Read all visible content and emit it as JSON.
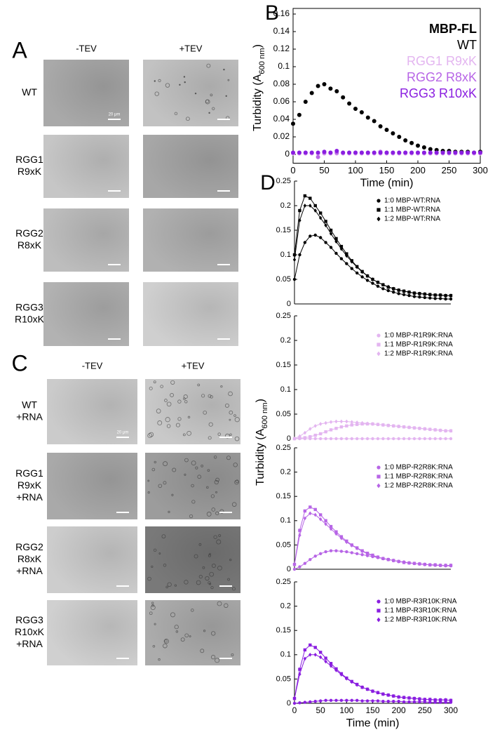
{
  "panel_a": {
    "label": "A",
    "columns": [
      "-TEV",
      "+TEV"
    ],
    "rows": [
      [
        "WT"
      ],
      [
        "RGG1",
        "R9xK"
      ],
      [
        "RGG2",
        "R8xK"
      ],
      [
        "RGG3",
        "R10xK"
      ]
    ],
    "scale_label": "20 μm"
  },
  "panel_c": {
    "label": "C",
    "columns": [
      "-TEV",
      "+TEV"
    ],
    "rows": [
      [
        "WT",
        "+RNA"
      ],
      [
        "RGG1",
        "R9xK",
        "+RNA"
      ],
      [
        "RGG2",
        "R8xK",
        "+RNA"
      ],
      [
        "RGG3",
        "R10xK",
        "+RNA"
      ]
    ],
    "scale_label": "20 μm"
  },
  "chart_data": [
    {
      "type": "scatter",
      "panel_label": "B",
      "x_label": "Time (min)",
      "y_label": [
        "Turbidity (A",
        "600 nm",
        ")"
      ],
      "legend_title": "MBP-FL",
      "legend": "upper right",
      "xlim": [
        0,
        300
      ],
      "xticks": [
        0,
        50,
        100,
        150,
        200,
        250,
        300
      ],
      "ylim": [
        -0.01,
        0.16
      ],
      "yticks": [
        0,
        0.02,
        0.04,
        0.06,
        0.08,
        0.1,
        0.12,
        0.14,
        0.16
      ],
      "x": [
        0,
        10,
        20,
        30,
        40,
        50,
        60,
        70,
        80,
        90,
        100,
        110,
        120,
        130,
        140,
        150,
        160,
        170,
        180,
        190,
        200,
        210,
        220,
        230,
        240,
        250,
        260,
        270,
        280,
        290,
        300
      ],
      "series": [
        {
          "name": "WT",
          "color": "#000000",
          "values": [
            0.035,
            0.045,
            0.06,
            0.07,
            0.078,
            0.08,
            0.075,
            0.072,
            0.065,
            0.058,
            0.052,
            0.048,
            0.042,
            0.038,
            0.032,
            0.028,
            0.024,
            0.02,
            0.016,
            0.013,
            0.01,
            0.008,
            0.006,
            0.005,
            0.004,
            0.004,
            0.003,
            0.003,
            0.003,
            0.002,
            0.003
          ]
        },
        {
          "name": "RGG1 R9xK",
          "color": "#e3b5f0",
          "values": [
            0.001,
            0.001,
            0.001,
            0.001,
            0.001,
            0.001,
            0.001,
            0.001,
            0.001,
            0.001,
            0.001,
            0.001,
            0.001,
            0.001,
            0.001,
            0.001,
            0.001,
            0.001,
            0.001,
            0.001,
            0.001,
            0.001,
            0.001,
            0.001,
            0.001,
            0.001,
            0.001,
            0.001,
            0.001,
            0.001,
            0.001
          ]
        },
        {
          "name": "RGG2 R8xK",
          "color": "#b765e6",
          "values": [
            0.002,
            0.002,
            0.002,
            0.002,
            -0.003,
            0.002,
            0.002,
            0.002,
            0.002,
            0.002,
            0.002,
            0.002,
            0.002,
            0.002,
            0.003,
            0.002,
            0.002,
            0.002,
            0.002,
            0.002,
            0.002,
            0.002,
            0.002,
            0.002,
            0.002,
            0.002,
            0.002,
            0.002,
            0.002,
            0.002,
            0.002
          ]
        },
        {
          "name": "RGG3 R10xK",
          "color": "#8a1ee0",
          "values": [
            0.002,
            0.002,
            0.002,
            0.002,
            0.002,
            0.003,
            0.002,
            0.004,
            0.002,
            0.002,
            0.002,
            0.002,
            0.002,
            0.002,
            0.002,
            0.002,
            0.002,
            0.002,
            0.002,
            0.002,
            0.002,
            0.002,
            0.002,
            0.002,
            0.002,
            0.002,
            0.002,
            0.002,
            0.002,
            0.002,
            0.002
          ]
        }
      ]
    },
    {
      "type": "line",
      "panel_label": "D",
      "y_label": [
        "Turbidity (A",
        "600 nm",
        ")"
      ],
      "legend": "upper right",
      "xlim": [
        0,
        300
      ],
      "ylim": [
        0,
        0.25
      ],
      "yticks": [
        0,
        0.05,
        0.1,
        0.15,
        0.2,
        0.25
      ],
      "x": [
        0,
        10,
        20,
        30,
        40,
        50,
        60,
        70,
        80,
        90,
        100,
        110,
        120,
        130,
        140,
        150,
        160,
        170,
        180,
        190,
        200,
        210,
        220,
        230,
        240,
        250,
        260,
        270,
        280,
        290,
        300
      ],
      "series": [
        {
          "name": "1:0 MBP-WT:RNA",
          "color": "#000000",
          "marker": "circle",
          "values": [
            0.05,
            0.1,
            0.125,
            0.138,
            0.14,
            0.135,
            0.125,
            0.115,
            0.103,
            0.092,
            0.082,
            0.072,
            0.063,
            0.055,
            0.048,
            0.042,
            0.036,
            0.031,
            0.027,
            0.024,
            0.021,
            0.019,
            0.017,
            0.015,
            0.014,
            0.013,
            0.012,
            0.011,
            0.011,
            0.01,
            0.01
          ]
        },
        {
          "name": "1:1 MBP-WT:RNA",
          "color": "#000000",
          "marker": "square",
          "values": [
            0.1,
            0.19,
            0.22,
            0.215,
            0.2,
            0.185,
            0.168,
            0.15,
            0.133,
            0.117,
            0.102,
            0.088,
            0.076,
            0.066,
            0.057,
            0.05,
            0.044,
            0.039,
            0.034,
            0.031,
            0.028,
            0.026,
            0.024,
            0.022,
            0.021,
            0.02,
            0.019,
            0.018,
            0.018,
            0.017,
            0.017
          ]
        },
        {
          "name": "1:2 MBP-WT:RNA",
          "color": "#000000",
          "marker": "diamond",
          "values": [
            0.09,
            0.17,
            0.2,
            0.2,
            0.19,
            0.175,
            0.16,
            0.143,
            0.127,
            0.112,
            0.098,
            0.086,
            0.075,
            0.065,
            0.057,
            0.05,
            0.044,
            0.039,
            0.035,
            0.031,
            0.028,
            0.026,
            0.024,
            0.022,
            0.021,
            0.02,
            0.019,
            0.018,
            0.018,
            0.017,
            0.017
          ]
        }
      ]
    },
    {
      "type": "line",
      "legend": "upper right",
      "xlim": [
        0,
        300
      ],
      "ylim": [
        0,
        0.25
      ],
      "yticks": [
        0,
        0.05,
        0.1,
        0.15,
        0.2,
        0.25
      ],
      "x": [
        0,
        10,
        20,
        30,
        40,
        50,
        60,
        70,
        80,
        90,
        100,
        110,
        120,
        130,
        140,
        150,
        160,
        170,
        180,
        190,
        200,
        210,
        220,
        230,
        240,
        250,
        260,
        270,
        280,
        290,
        300
      ],
      "series": [
        {
          "name": "1:0 MBP-R1R9K:RNA",
          "color": "#e3b5f0",
          "marker": "circle",
          "values": [
            0,
            0,
            0,
            0,
            0,
            0,
            0,
            0,
            0,
            0,
            0,
            0,
            0,
            0,
            0,
            0,
            0,
            0,
            0,
            0,
            0,
            0,
            0,
            0,
            0,
            0,
            0,
            0,
            0,
            0,
            0
          ]
        },
        {
          "name": "1:1 MBP-R1R9K:RNA",
          "color": "#e3b5f0",
          "marker": "square",
          "values": [
            0,
            0.001,
            0.002,
            0.004,
            0.007,
            0.01,
            0.014,
            0.018,
            0.021,
            0.024,
            0.026,
            0.028,
            0.029,
            0.03,
            0.03,
            0.03,
            0.029,
            0.028,
            0.027,
            0.026,
            0.025,
            0.024,
            0.023,
            0.022,
            0.021,
            0.02,
            0.019,
            0.018,
            0.017,
            0.016,
            0.016
          ]
        },
        {
          "name": "1:2 MBP-R1R9K:RNA",
          "color": "#e3b5f0",
          "marker": "diamond",
          "values": [
            0,
            0.005,
            0.012,
            0.02,
            0.026,
            0.03,
            0.032,
            0.034,
            0.035,
            0.035,
            0.035,
            0.034,
            0.033,
            0.032,
            0.031,
            0.03,
            0.029,
            0.028,
            0.027,
            0.026,
            0.025,
            0.024,
            0.023,
            0.022,
            0.021,
            0.02,
            0.019,
            0.018,
            0.017,
            0.016,
            0.016
          ]
        }
      ]
    },
    {
      "type": "line",
      "legend": "upper right",
      "xlim": [
        0,
        300
      ],
      "ylim": [
        0,
        0.25
      ],
      "yticks": [
        0,
        0.05,
        0.1,
        0.15,
        0.2,
        0.25
      ],
      "x": [
        0,
        10,
        20,
        30,
        40,
        50,
        60,
        70,
        80,
        90,
        100,
        110,
        120,
        130,
        140,
        150,
        160,
        170,
        180,
        190,
        200,
        210,
        220,
        230,
        240,
        250,
        260,
        270,
        280,
        290,
        300
      ],
      "series": [
        {
          "name": "1:0 MBP-R2R8K:RNA",
          "color": "#b765e6",
          "marker": "circle",
          "values": [
            0,
            0.005,
            0.012,
            0.02,
            0.027,
            0.032,
            0.036,
            0.038,
            0.038,
            0.037,
            0.036,
            0.034,
            0.032,
            0.03,
            0.028,
            0.026,
            0.024,
            0.022,
            0.02,
            0.018,
            0.016,
            0.015,
            0.013,
            0.012,
            0.011,
            0.01,
            0.009,
            0.008,
            0.008,
            0.007,
            0.007
          ]
        },
        {
          "name": "1:1 MBP-R2R8K:RNA",
          "color": "#b765e6",
          "marker": "square",
          "values": [
            0.01,
            0.08,
            0.12,
            0.128,
            0.123,
            0.112,
            0.1,
            0.088,
            0.077,
            0.067,
            0.058,
            0.05,
            0.044,
            0.038,
            0.033,
            0.029,
            0.025,
            0.022,
            0.02,
            0.018,
            0.016,
            0.014,
            0.013,
            0.012,
            0.011,
            0.01,
            0.009,
            0.009,
            0.008,
            0.008,
            0.008
          ]
        },
        {
          "name": "1:2 MBP-R2R8K:RNA",
          "color": "#b765e6",
          "marker": "diamond",
          "values": [
            0.01,
            0.07,
            0.105,
            0.115,
            0.112,
            0.103,
            0.093,
            0.083,
            0.073,
            0.064,
            0.056,
            0.049,
            0.043,
            0.037,
            0.032,
            0.028,
            0.025,
            0.022,
            0.02,
            0.018,
            0.016,
            0.014,
            0.013,
            0.012,
            0.011,
            0.01,
            0.009,
            0.009,
            0.008,
            0.008,
            0.008
          ]
        }
      ]
    },
    {
      "type": "line",
      "x_label": "Time (min)",
      "legend": "upper right",
      "xlim": [
        0,
        300
      ],
      "xticks": [
        0,
        50,
        100,
        150,
        200,
        250,
        300
      ],
      "ylim": [
        0,
        0.25
      ],
      "yticks": [
        0,
        0.05,
        0.1,
        0.15,
        0.2,
        0.25
      ],
      "x": [
        0,
        10,
        20,
        30,
        40,
        50,
        60,
        70,
        80,
        90,
        100,
        110,
        120,
        130,
        140,
        150,
        160,
        170,
        180,
        190,
        200,
        210,
        220,
        230,
        240,
        250,
        260,
        270,
        280,
        290,
        300
      ],
      "series": [
        {
          "name": "1:0 MBP-R3R10K:RNA",
          "color": "#8a1ee0",
          "marker": "circle",
          "values": [
            0,
            0.001,
            0.002,
            0.003,
            0.004,
            0.005,
            0.006,
            0.006,
            0.006,
            0.006,
            0.006,
            0.006,
            0.006,
            0.005,
            0.005,
            0.005,
            0.005,
            0.004,
            0.004,
            0.004,
            0.004,
            0.003,
            0.003,
            0.003,
            0.003,
            0.003,
            0.002,
            0.002,
            0.002,
            0.002,
            0.002
          ]
        },
        {
          "name": "1:1 MBP-R3R10K:RNA",
          "color": "#8a1ee0",
          "marker": "square",
          "values": [
            0.01,
            0.07,
            0.11,
            0.12,
            0.115,
            0.105,
            0.093,
            0.082,
            0.071,
            0.061,
            0.052,
            0.045,
            0.039,
            0.033,
            0.029,
            0.025,
            0.022,
            0.019,
            0.017,
            0.015,
            0.013,
            0.012,
            0.011,
            0.01,
            0.009,
            0.008,
            0.008,
            0.007,
            0.007,
            0.007,
            0.006
          ]
        },
        {
          "name": "1:2 MBP-R3R10K:RNA",
          "color": "#8a1ee0",
          "marker": "diamond",
          "values": [
            0.01,
            0.06,
            0.092,
            0.1,
            0.1,
            0.095,
            0.086,
            0.077,
            0.068,
            0.059,
            0.051,
            0.044,
            0.038,
            0.033,
            0.029,
            0.025,
            0.022,
            0.019,
            0.017,
            0.015,
            0.013,
            0.012,
            0.011,
            0.01,
            0.009,
            0.008,
            0.008,
            0.007,
            0.007,
            0.007,
            0.006
          ]
        }
      ]
    }
  ]
}
